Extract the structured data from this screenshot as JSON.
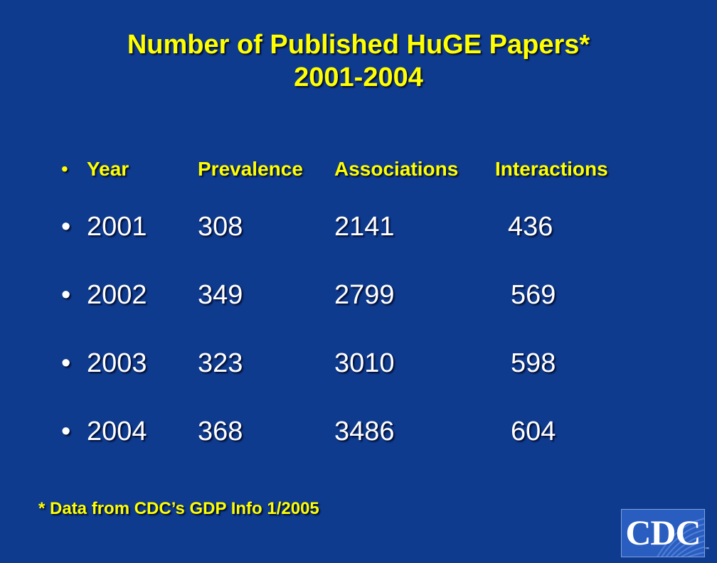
{
  "title": {
    "line1": "Number of Published HuGE Papers*",
    "line2": "2001-2004"
  },
  "table": {
    "bullet": "•",
    "headers": [
      "Year",
      "Prevalence",
      "Associations",
      "Interactions"
    ],
    "rows": [
      {
        "year": "2001",
        "prevalence": "308",
        "associations": "2141",
        "interactions": "436"
      },
      {
        "year": "2002",
        "prevalence": "349",
        "associations": "2799",
        "interactions": "569"
      },
      {
        "year": "2003",
        "prevalence": "323",
        "associations": "3010",
        "interactions": "598"
      },
      {
        "year": "2004",
        "prevalence": "368",
        "associations": "3486",
        "interactions": "604"
      }
    ]
  },
  "footnote": "* Data from CDC’s GDP Info 1/2005",
  "logo": {
    "text": "CDC",
    "tm": "™"
  },
  "colors": {
    "background": "#0f3b8f",
    "title": "#ffff00",
    "text": "#ffffff"
  }
}
